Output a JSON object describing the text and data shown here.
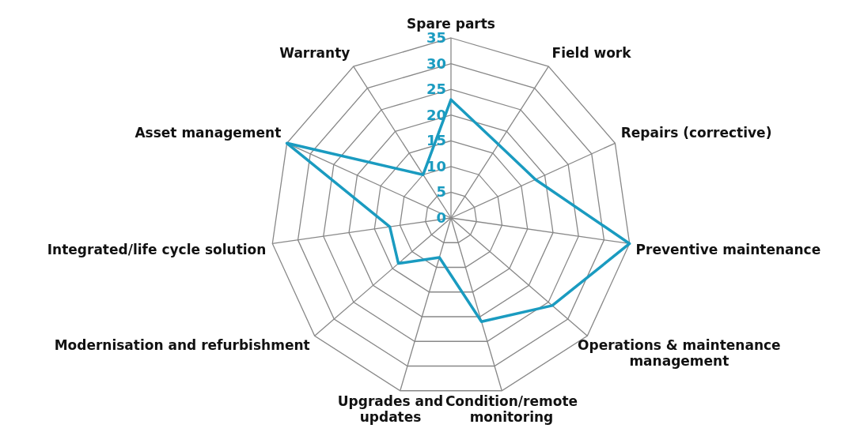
{
  "chart_data": {
    "type": "radar",
    "categories": [
      "Spare parts",
      "Field work",
      "Repairs (corrective)",
      "Preventive maintenance",
      "Operations & maintenance management",
      "Condition/remote monitoring",
      "Upgrades and updates",
      "Modernisation and refurbishment",
      "Integrated/life cycle solution",
      "Asset management",
      "Warranty"
    ],
    "series": [
      {
        "color": "#1a9bc0",
        "values": [
          23,
          17,
          18,
          35,
          26,
          21,
          8,
          13.5,
          12,
          35,
          10
        ]
      }
    ],
    "ylim": [
      0,
      35
    ],
    "yticks": [
      0,
      5,
      10,
      15,
      20,
      25,
      30,
      35
    ],
    "grid": true,
    "marker": "none"
  }
}
